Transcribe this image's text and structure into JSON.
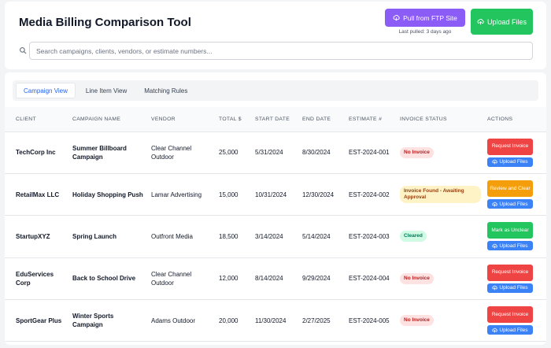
{
  "header": {
    "title": "Media Billing Comparison Tool",
    "ftp_button_label": "Pull from FTP Site",
    "last_pulled": "Last pulled: 3 days ago",
    "upload_button_label": "Upload Files"
  },
  "search": {
    "placeholder": "Search campaigns, clients, vendors, or estimate numbers...",
    "value": ""
  },
  "tabs": [
    {
      "label": "Campaign View",
      "active": true
    },
    {
      "label": "Line Item View",
      "active": false
    },
    {
      "label": "Matching Rules",
      "active": false
    }
  ],
  "table": {
    "columns": [
      "CLIENT",
      "CAMPAIGN NAME",
      "VENDOR",
      "TOTAL $",
      "START DATE",
      "END DATE",
      "ESTIMATE #",
      "INVOICE STATUS",
      "ACTIONS"
    ],
    "rows": [
      {
        "client": "TechCorp Inc",
        "campaign": "Summer Billboard Campaign",
        "vendor": "Clear Channel Outdoor",
        "total": "25,000",
        "start": "5/31/2024",
        "end": "8/30/2024",
        "estimate": "EST-2024-001",
        "status": "No Invoice",
        "action": "Request Invoice",
        "upload": "Upload Files"
      },
      {
        "client": "RetailMax LLC",
        "campaign": "Holiday Shopping Push",
        "vendor": "Lamar Advertising",
        "total": "15,000",
        "start": "10/31/2024",
        "end": "12/30/2024",
        "estimate": "EST-2024-002",
        "status": "Invoice Found - Awaiting Approval",
        "action": "Review and Clear",
        "upload": "Upload Files"
      },
      {
        "client": "StartupXYZ",
        "campaign": "Spring Launch",
        "vendor": "Outfront Media",
        "total": "18,500",
        "start": "3/14/2024",
        "end": "5/14/2024",
        "estimate": "EST-2024-003",
        "status": "Cleared",
        "action": "Mark as Unclear",
        "upload": "Upload Files"
      },
      {
        "client": "EduServices Corp",
        "campaign": "Back to School Drive",
        "vendor": "Clear Channel Outdoor",
        "total": "12,000",
        "start": "8/14/2024",
        "end": "9/29/2024",
        "estimate": "EST-2024-004",
        "status": "No Invoice",
        "action": "Request Invoice",
        "upload": "Upload Files"
      },
      {
        "client": "SportGear Plus",
        "campaign": "Winter Sports Campaign",
        "vendor": "Adams Outdoor",
        "total": "20,000",
        "start": "11/30/2024",
        "end": "2/27/2025",
        "estimate": "EST-2024-005",
        "status": "No Invoice",
        "action": "Request Invoice",
        "upload": "Upload Files"
      }
    ]
  },
  "colors": {
    "ftp_button": "#8b5cf6",
    "upload_button": "#22c55e",
    "request_invoice": "#ef4444",
    "review_clear": "#f59e0b",
    "mark_unclear": "#22c55e",
    "row_upload": "#3b82f6",
    "active_tab": "#2563eb"
  },
  "icons": {
    "ftp": "cloud-download-icon",
    "upload": "cloud-upload-icon",
    "search": "search-icon"
  }
}
